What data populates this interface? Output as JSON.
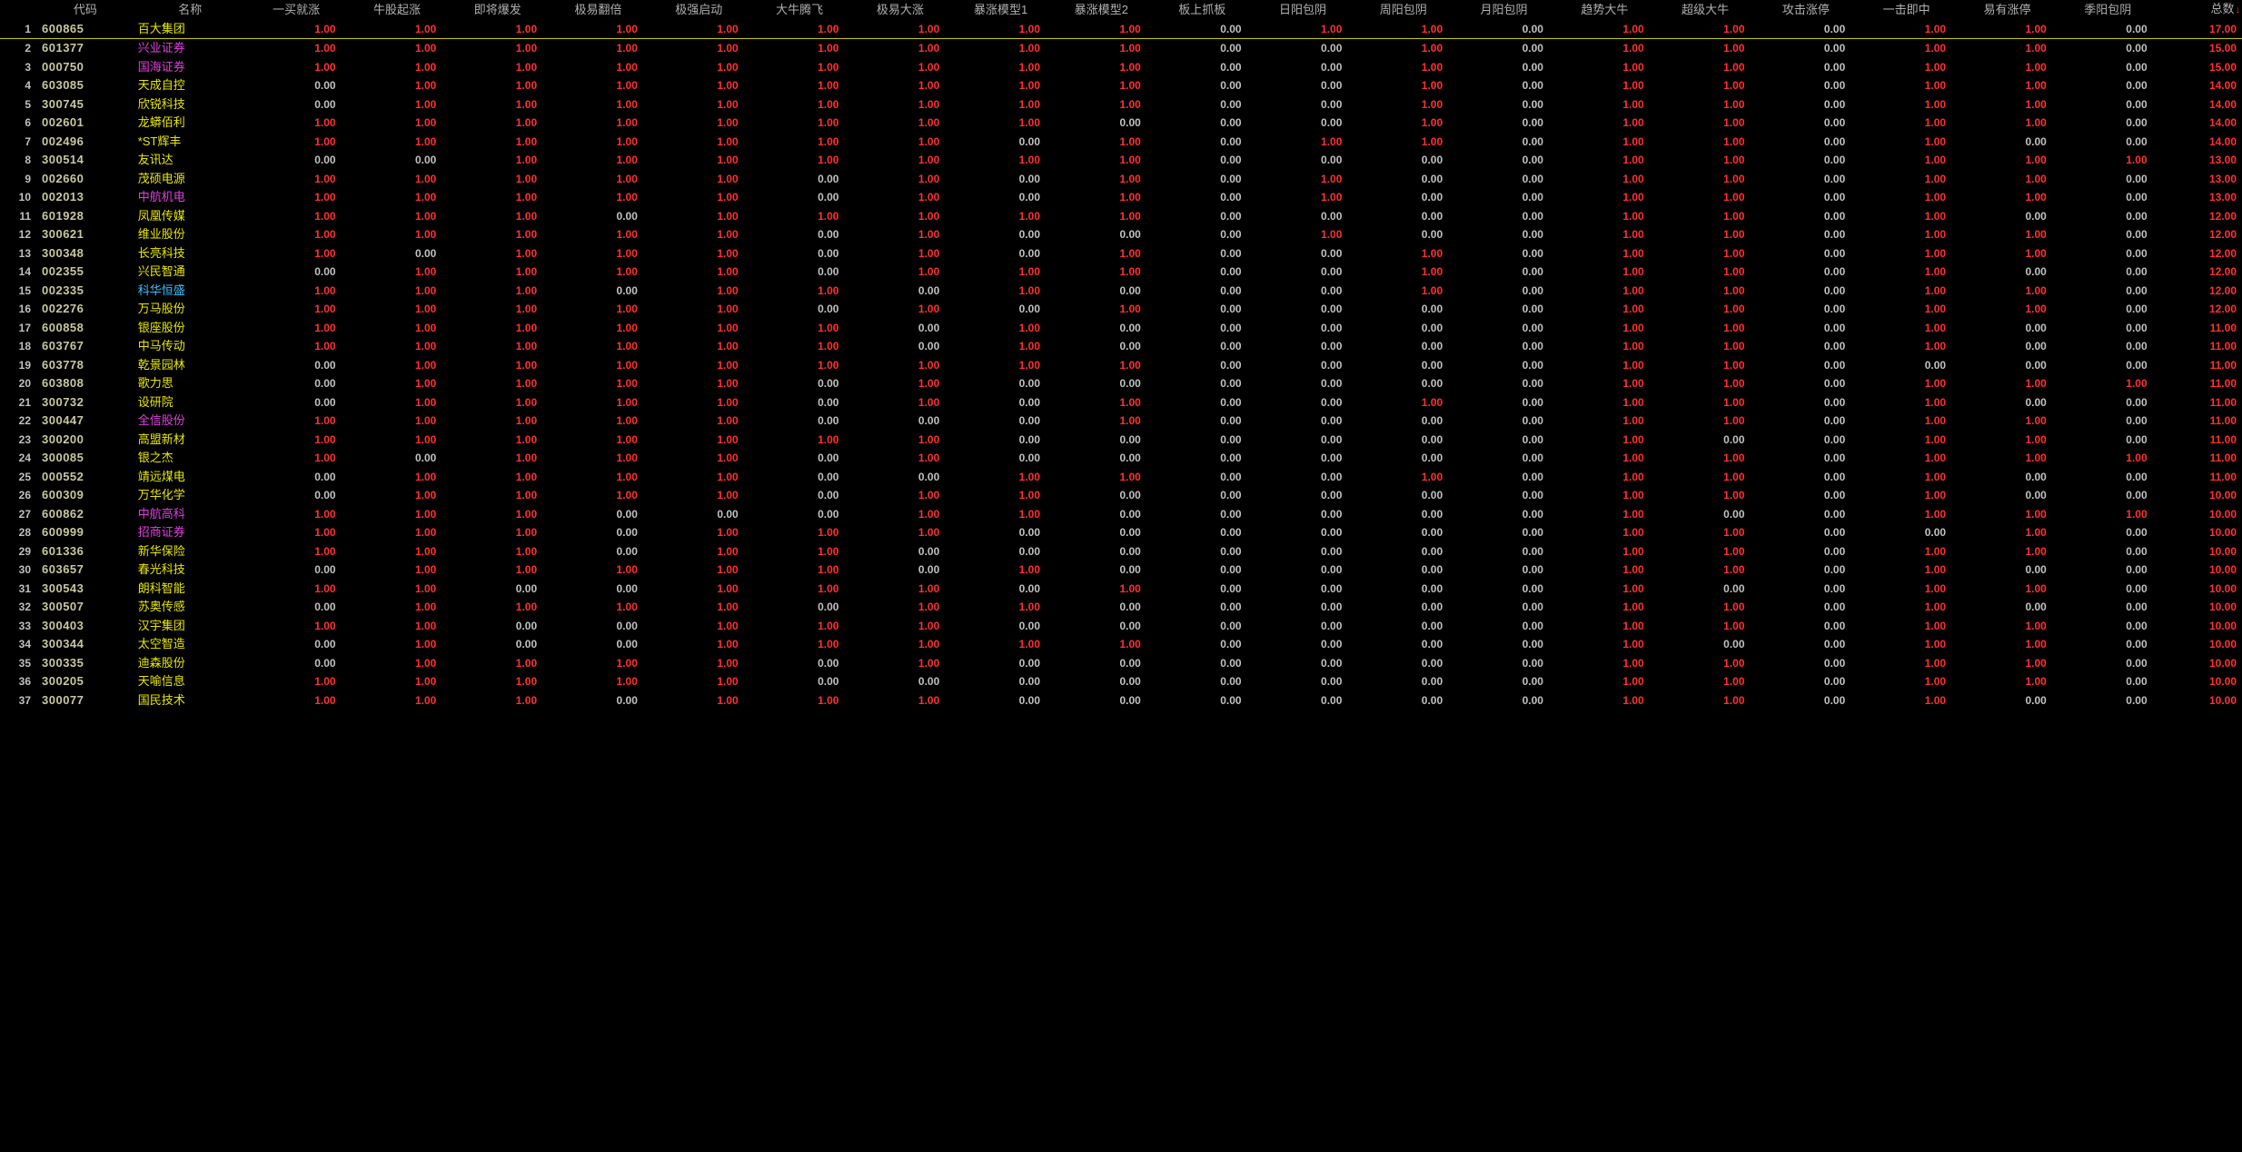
{
  "colors": {
    "background": "#000000",
    "header_text": "#b0b0b0",
    "row_index_text": "#c0c0c0",
    "code_text": "#c8c8a0",
    "value_one": "#ff3030",
    "value_zero": "#c0c0c0",
    "total_text": "#ff3030",
    "highlight_underline": "#c8c800",
    "name_colors": {
      "yellow": "#e8e800",
      "magenta": "#e040e0",
      "cyan": "#40c0ff"
    }
  },
  "headers": {
    "index": "",
    "code": "代码",
    "name": "名称",
    "columns": [
      "一买就涨",
      "牛股起涨",
      "即将爆发",
      "极易翻倍",
      "极强启动",
      "大牛腾飞",
      "极易大涨",
      "暴涨模型1",
      "暴涨模型2",
      "板上抓板",
      "日阳包阴",
      "周阳包阴",
      "月阳包阴",
      "趋势大牛",
      "超级大牛",
      "攻击涨停",
      "一击即中",
      "易有涨停",
      "季阳包阴"
    ],
    "total": "总数"
  },
  "sort_indicator": "↓",
  "format": {
    "value": "0.00"
  },
  "highlight_row_index": 0,
  "rows": [
    {
      "idx": 1,
      "code": "600865",
      "name": "百大集团",
      "name_color": "yellow",
      "v": [
        1,
        1,
        1,
        1,
        1,
        1,
        1,
        1,
        1,
        0,
        1,
        1,
        0,
        1,
        1,
        0,
        1,
        1,
        0
      ],
      "total": 17.0
    },
    {
      "idx": 2,
      "code": "601377",
      "name": "兴业证券",
      "name_color": "magenta",
      "v": [
        1,
        1,
        1,
        1,
        1,
        1,
        1,
        1,
        1,
        0,
        0,
        1,
        0,
        1,
        1,
        0,
        1,
        1,
        0
      ],
      "total": 15.0
    },
    {
      "idx": 3,
      "code": "000750",
      "name": "国海证券",
      "name_color": "magenta",
      "v": [
        1,
        1,
        1,
        1,
        1,
        1,
        1,
        1,
        1,
        0,
        0,
        1,
        0,
        1,
        1,
        0,
        1,
        1,
        0
      ],
      "total": 15.0
    },
    {
      "idx": 4,
      "code": "603085",
      "name": "天成自控",
      "name_color": "yellow",
      "v": [
        0,
        1,
        1,
        1,
        1,
        1,
        1,
        1,
        1,
        0,
        0,
        1,
        0,
        1,
        1,
        0,
        1,
        1,
        0
      ],
      "total": 14.0
    },
    {
      "idx": 5,
      "code": "300745",
      "name": "欣锐科技",
      "name_color": "yellow",
      "v": [
        0,
        1,
        1,
        1,
        1,
        1,
        1,
        1,
        1,
        0,
        0,
        1,
        0,
        1,
        1,
        0,
        1,
        1,
        0
      ],
      "total": 14.0
    },
    {
      "idx": 6,
      "code": "002601",
      "name": "龙蟒佰利",
      "name_color": "yellow",
      "v": [
        1,
        1,
        1,
        1,
        1,
        1,
        1,
        1,
        0,
        0,
        0,
        1,
        0,
        1,
        1,
        0,
        1,
        1,
        0
      ],
      "total": 14.0
    },
    {
      "idx": 7,
      "code": "002496",
      "name": "*ST辉丰",
      "name_color": "yellow",
      "v": [
        1,
        1,
        1,
        1,
        1,
        1,
        1,
        0,
        1,
        0,
        1,
        1,
        0,
        1,
        1,
        0,
        1,
        0,
        0
      ],
      "total": 14.0
    },
    {
      "idx": 8,
      "code": "300514",
      "name": "友讯达",
      "name_color": "yellow",
      "v": [
        0,
        0,
        1,
        1,
        1,
        1,
        1,
        1,
        1,
        0,
        0,
        0,
        0,
        1,
        1,
        0,
        1,
        1,
        1
      ],
      "total": 13.0
    },
    {
      "idx": 9,
      "code": "002660",
      "name": "茂硕电源",
      "name_color": "yellow",
      "v": [
        1,
        1,
        1,
        1,
        1,
        0,
        1,
        0,
        1,
        0,
        1,
        0,
        0,
        1,
        1,
        0,
        1,
        1,
        0
      ],
      "total": 13.0
    },
    {
      "idx": 10,
      "code": "002013",
      "name": "中航机电",
      "name_color": "magenta",
      "v": [
        1,
        1,
        1,
        1,
        1,
        0,
        1,
        0,
        1,
        0,
        1,
        0,
        0,
        1,
        1,
        0,
        1,
        1,
        0
      ],
      "total": 13.0
    },
    {
      "idx": 11,
      "code": "601928",
      "name": "凤凰传媒",
      "name_color": "yellow",
      "v": [
        1,
        1,
        1,
        0,
        1,
        1,
        1,
        1,
        1,
        0,
        0,
        0,
        0,
        1,
        1,
        0,
        1,
        0,
        0
      ],
      "total": 12.0
    },
    {
      "idx": 12,
      "code": "300621",
      "name": "维业股份",
      "name_color": "yellow",
      "v": [
        1,
        1,
        1,
        1,
        1,
        0,
        1,
        0,
        0,
        0,
        1,
        0,
        0,
        1,
        1,
        0,
        1,
        1,
        0
      ],
      "total": 12.0
    },
    {
      "idx": 13,
      "code": "300348",
      "name": "长亮科技",
      "name_color": "yellow",
      "v": [
        1,
        0,
        1,
        1,
        1,
        0,
        1,
        0,
        1,
        0,
        0,
        1,
        0,
        1,
        1,
        0,
        1,
        1,
        0
      ],
      "total": 12.0
    },
    {
      "idx": 14,
      "code": "002355",
      "name": "兴民智通",
      "name_color": "yellow",
      "v": [
        0,
        1,
        1,
        1,
        1,
        0,
        1,
        1,
        1,
        0,
        0,
        1,
        0,
        1,
        1,
        0,
        1,
        0,
        0
      ],
      "total": 12.0
    },
    {
      "idx": 15,
      "code": "002335",
      "name": "科华恒盛",
      "name_color": "cyan",
      "v": [
        1,
        1,
        1,
        0,
        1,
        1,
        0,
        1,
        0,
        0,
        0,
        1,
        0,
        1,
        1,
        0,
        1,
        1,
        0
      ],
      "total": 12.0
    },
    {
      "idx": 16,
      "code": "002276",
      "name": "万马股份",
      "name_color": "yellow",
      "v": [
        1,
        1,
        1,
        1,
        1,
        0,
        1,
        0,
        1,
        0,
        0,
        0,
        0,
        1,
        1,
        0,
        1,
        1,
        0
      ],
      "total": 12.0
    },
    {
      "idx": 17,
      "code": "600858",
      "name": "银座股份",
      "name_color": "yellow",
      "v": [
        1,
        1,
        1,
        1,
        1,
        1,
        0,
        1,
        0,
        0,
        0,
        0,
        0,
        1,
        1,
        0,
        1,
        0,
        0
      ],
      "total": 11.0
    },
    {
      "idx": 18,
      "code": "603767",
      "name": "中马传动",
      "name_color": "yellow",
      "v": [
        1,
        1,
        1,
        1,
        1,
        1,
        0,
        1,
        0,
        0,
        0,
        0,
        0,
        1,
        1,
        0,
        1,
        0,
        0
      ],
      "total": 11.0
    },
    {
      "idx": 19,
      "code": "603778",
      "name": "乾景园林",
      "name_color": "yellow",
      "v": [
        0,
        1,
        1,
        1,
        1,
        1,
        1,
        1,
        1,
        0,
        0,
        0,
        0,
        1,
        1,
        0,
        0,
        0,
        0
      ],
      "total": 11.0
    },
    {
      "idx": 20,
      "code": "603808",
      "name": "歌力思",
      "name_color": "yellow",
      "v": [
        0,
        1,
        1,
        1,
        1,
        0,
        1,
        0,
        0,
        0,
        0,
        0,
        0,
        1,
        1,
        0,
        1,
        1,
        1
      ],
      "total": 11.0
    },
    {
      "idx": 21,
      "code": "300732",
      "name": "设研院",
      "name_color": "yellow",
      "v": [
        0,
        1,
        1,
        1,
        1,
        0,
        1,
        0,
        1,
        0,
        0,
        1,
        0,
        1,
        1,
        0,
        1,
        0,
        0
      ],
      "total": 11.0
    },
    {
      "idx": 22,
      "code": "300447",
      "name": "全信股份",
      "name_color": "magenta",
      "v": [
        1,
        1,
        1,
        1,
        1,
        0,
        0,
        0,
        1,
        0,
        0,
        0,
        0,
        1,
        1,
        0,
        1,
        1,
        0
      ],
      "total": 11.0
    },
    {
      "idx": 23,
      "code": "300200",
      "name": "高盟新材",
      "name_color": "yellow",
      "v": [
        1,
        1,
        1,
        1,
        1,
        1,
        1,
        0,
        0,
        0,
        0,
        0,
        0,
        1,
        0,
        0,
        1,
        1,
        0
      ],
      "total": 11.0
    },
    {
      "idx": 24,
      "code": "300085",
      "name": "银之杰",
      "name_color": "yellow",
      "v": [
        1,
        0,
        1,
        1,
        1,
        0,
        1,
        0,
        0,
        0,
        0,
        0,
        0,
        1,
        1,
        0,
        1,
        1,
        1
      ],
      "total": 11.0
    },
    {
      "idx": 25,
      "code": "000552",
      "name": "靖远煤电",
      "name_color": "yellow",
      "v": [
        0,
        1,
        1,
        1,
        1,
        0,
        0,
        1,
        1,
        0,
        0,
        1,
        0,
        1,
        1,
        0,
        1,
        0,
        0
      ],
      "total": 11.0
    },
    {
      "idx": 26,
      "code": "600309",
      "name": "万华化学",
      "name_color": "yellow",
      "v": [
        0,
        1,
        1,
        1,
        1,
        0,
        1,
        1,
        0,
        0,
        0,
        0,
        0,
        1,
        1,
        0,
        1,
        0,
        0
      ],
      "total": 10.0
    },
    {
      "idx": 27,
      "code": "600862",
      "name": "中航高科",
      "name_color": "magenta",
      "v": [
        1,
        1,
        1,
        0,
        0,
        0,
        1,
        1,
        0,
        0,
        0,
        0,
        0,
        1,
        0,
        0,
        1,
        1,
        1
      ],
      "total": 10.0
    },
    {
      "idx": 28,
      "code": "600999",
      "name": "招商证券",
      "name_color": "magenta",
      "v": [
        1,
        1,
        1,
        0,
        1,
        1,
        1,
        0,
        0,
        0,
        0,
        0,
        0,
        1,
        1,
        0,
        0,
        1,
        0
      ],
      "total": 10.0
    },
    {
      "idx": 29,
      "code": "601336",
      "name": "新华保险",
      "name_color": "yellow",
      "v": [
        1,
        1,
        1,
        0,
        1,
        1,
        0,
        0,
        0,
        0,
        0,
        0,
        0,
        1,
        1,
        0,
        1,
        1,
        0
      ],
      "total": 10.0
    },
    {
      "idx": 30,
      "code": "603657",
      "name": "春光科技",
      "name_color": "yellow",
      "v": [
        0,
        1,
        1,
        1,
        1,
        1,
        0,
        1,
        0,
        0,
        0,
        0,
        0,
        1,
        1,
        0,
        1,
        0,
        0
      ],
      "total": 10.0
    },
    {
      "idx": 31,
      "code": "300543",
      "name": "朗科智能",
      "name_color": "yellow",
      "v": [
        1,
        1,
        0,
        0,
        1,
        1,
        1,
        0,
        1,
        0,
        0,
        0,
        0,
        1,
        0,
        0,
        1,
        1,
        0
      ],
      "total": 10.0
    },
    {
      "idx": 32,
      "code": "300507",
      "name": "苏奥传感",
      "name_color": "yellow",
      "v": [
        0,
        1,
        1,
        1,
        1,
        0,
        1,
        1,
        0,
        0,
        0,
        0,
        0,
        1,
        1,
        0,
        1,
        0,
        0
      ],
      "total": 10.0
    },
    {
      "idx": 33,
      "code": "300403",
      "name": "汉宇集团",
      "name_color": "yellow",
      "v": [
        1,
        1,
        0,
        0,
        1,
        1,
        1,
        0,
        0,
        0,
        0,
        0,
        0,
        1,
        1,
        0,
        1,
        1,
        0
      ],
      "total": 10.0
    },
    {
      "idx": 34,
      "code": "300344",
      "name": "太空智造",
      "name_color": "yellow",
      "v": [
        0,
        1,
        0,
        0,
        1,
        1,
        1,
        1,
        1,
        0,
        0,
        0,
        0,
        1,
        0,
        0,
        1,
        1,
        0
      ],
      "total": 10.0
    },
    {
      "idx": 35,
      "code": "300335",
      "name": "迪森股份",
      "name_color": "yellow",
      "v": [
        0,
        1,
        1,
        1,
        1,
        0,
        1,
        0,
        0,
        0,
        0,
        0,
        0,
        1,
        1,
        0,
        1,
        1,
        0
      ],
      "total": 10.0
    },
    {
      "idx": 36,
      "code": "300205",
      "name": "天喻信息",
      "name_color": "yellow",
      "v": [
        1,
        1,
        1,
        1,
        1,
        0,
        0,
        0,
        0,
        0,
        0,
        0,
        0,
        1,
        1,
        0,
        1,
        1,
        0
      ],
      "total": 10.0
    },
    {
      "idx": 37,
      "code": "300077",
      "name": "国民技术",
      "name_color": "yellow",
      "v": [
        1,
        1,
        1,
        0,
        1,
        1,
        1,
        0,
        0,
        0,
        0,
        0,
        0,
        1,
        1,
        0,
        1,
        0,
        0
      ],
      "total": 10.0
    }
  ]
}
